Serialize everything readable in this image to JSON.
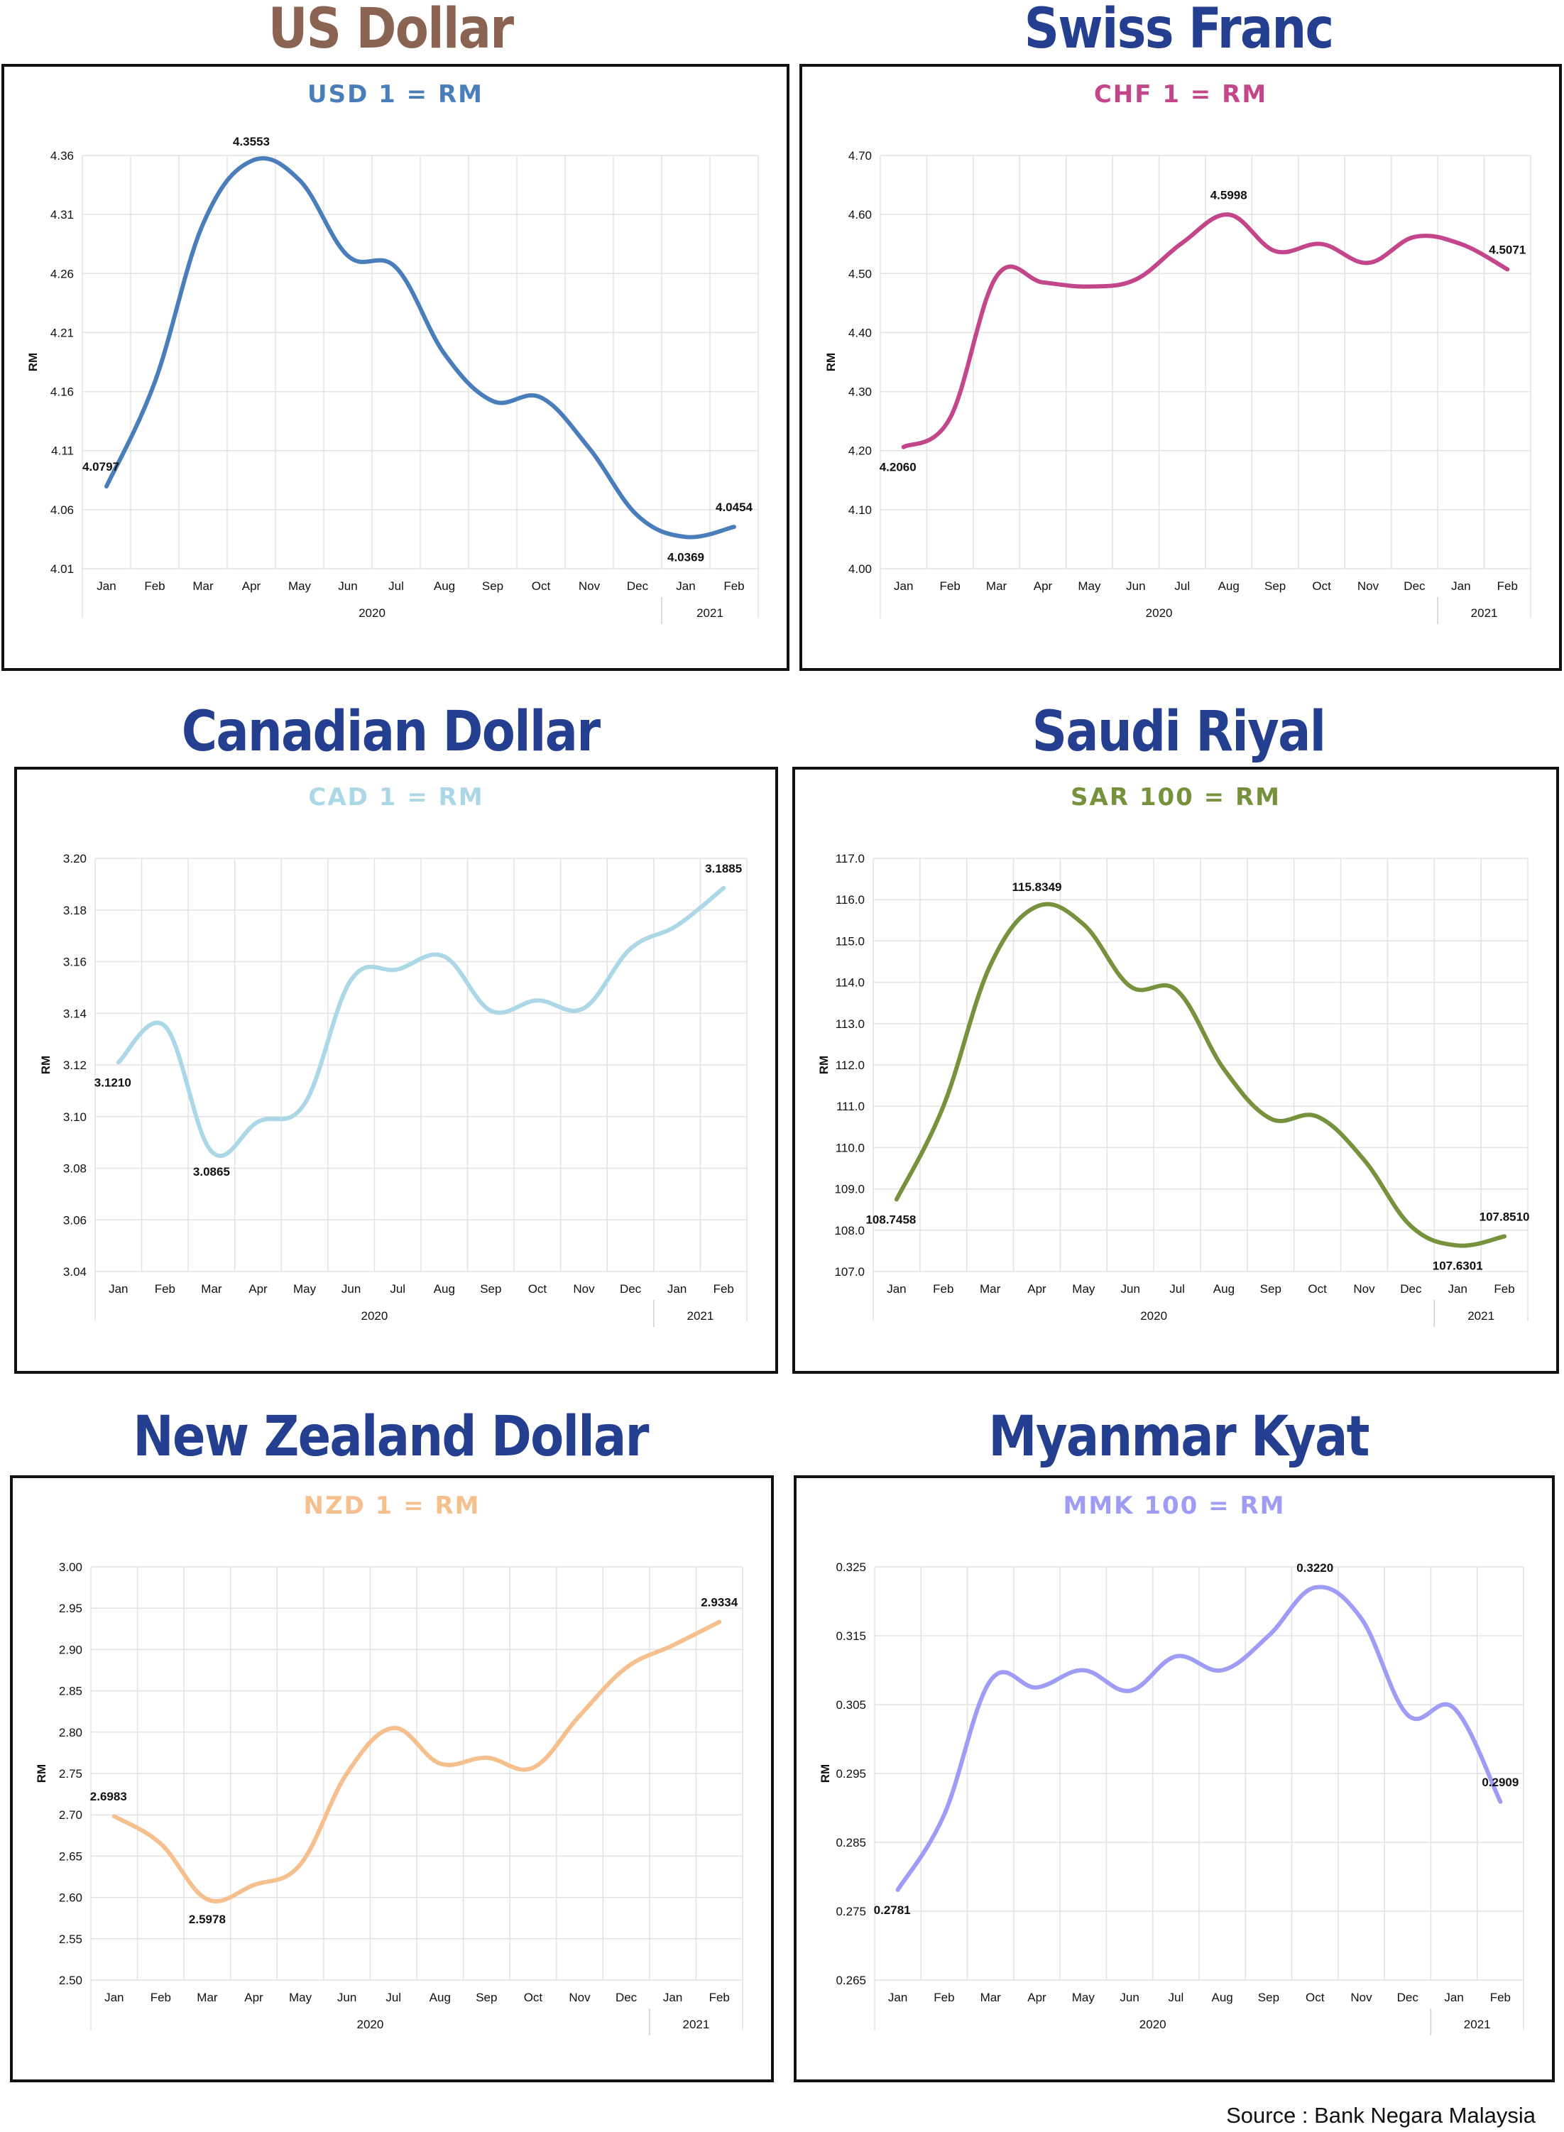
{
  "source": "Source : Bank Negara Malaysia",
  "chart_data": [
    {
      "type": "line",
      "heading": "US Dollar",
      "heading_color": "#8B6352",
      "title": "USD 1 = RM",
      "color": "#4A7EBB",
      "ylabel": "RM",
      "ylim": [
        4.01,
        4.36
      ],
      "yticks": [
        "4.36",
        "4.31",
        "4.26",
        "4.21",
        "4.16",
        "4.11",
        "4.06",
        "4.01"
      ],
      "categories": [
        "Jan",
        "Feb",
        "Mar",
        "Apr",
        "May",
        "Jun",
        "Jul",
        "Aug",
        "Sep",
        "Oct",
        "Nov",
        "Dec",
        "Jan",
        "Feb"
      ],
      "years": [
        {
          "label": "2020",
          "from": 0,
          "to": 11
        },
        {
          "label": "2021",
          "from": 12,
          "to": 13
        }
      ],
      "values": [
        4.0797,
        4.168,
        4.302,
        4.3553,
        4.339,
        4.275,
        4.265,
        4.192,
        4.152,
        4.155,
        4.112,
        4.055,
        4.0369,
        4.0454
      ],
      "labels": [
        {
          "i": 0,
          "text": "4.0797",
          "pos": "above"
        },
        {
          "i": 3,
          "text": "4.3553",
          "pos": "above"
        },
        {
          "i": 12,
          "text": "4.0369",
          "pos": "below"
        },
        {
          "i": 13,
          "text": "4.0454",
          "pos": "above"
        }
      ]
    },
    {
      "type": "line",
      "heading": "Swiss Franc",
      "heading_color": "#243F8F",
      "title": "CHF 1 = RM",
      "color": "#C4468A",
      "ylabel": "RM",
      "ylim": [
        4.0,
        4.7
      ],
      "yticks": [
        "4.70",
        "4.60",
        "4.50",
        "4.40",
        "4.30",
        "4.20",
        "4.10",
        "4.00"
      ],
      "categories": [
        "Jan",
        "Feb",
        "Mar",
        "Apr",
        "May",
        "Jun",
        "Jul",
        "Aug",
        "Sep",
        "Oct",
        "Nov",
        "Dec",
        "Jan",
        "Feb"
      ],
      "years": [
        {
          "label": "2020",
          "from": 0,
          "to": 11
        },
        {
          "label": "2021",
          "from": 12,
          "to": 13
        }
      ],
      "values": [
        4.206,
        4.255,
        4.495,
        4.485,
        4.478,
        4.49,
        4.552,
        4.5998,
        4.538,
        4.55,
        4.518,
        4.562,
        4.55,
        4.5071
      ],
      "labels": [
        {
          "i": 0,
          "text": "4.2060",
          "pos": "below"
        },
        {
          "i": 7,
          "text": "4.5998",
          "pos": "above"
        },
        {
          "i": 13,
          "text": "4.5071",
          "pos": "above"
        }
      ]
    },
    {
      "type": "line",
      "heading": "Canadian Dollar",
      "heading_color": "#243F8F",
      "title": "CAD 1 = RM",
      "color": "#ABD7E6",
      "ylabel": "RM",
      "ylim": [
        3.04,
        3.2
      ],
      "yticks": [
        "3.20",
        "3.18",
        "3.16",
        "3.14",
        "3.12",
        "3.10",
        "3.08",
        "3.06",
        "3.04"
      ],
      "categories": [
        "Jan",
        "Feb",
        "Mar",
        "Apr",
        "May",
        "Jun",
        "Jul",
        "Aug",
        "Sep",
        "Oct",
        "Nov",
        "Dec",
        "Jan",
        "Feb"
      ],
      "years": [
        {
          "label": "2020",
          "from": 0,
          "to": 11
        },
        {
          "label": "2021",
          "from": 12,
          "to": 13
        }
      ],
      "values": [
        3.121,
        3.135,
        3.0865,
        3.098,
        3.105,
        3.153,
        3.157,
        3.162,
        3.141,
        3.145,
        3.142,
        3.165,
        3.174,
        3.1885
      ],
      "labels": [
        {
          "i": 0,
          "text": "3.1210",
          "pos": "below"
        },
        {
          "i": 2,
          "text": "3.0865",
          "pos": "below"
        },
        {
          "i": 13,
          "text": "3.1885",
          "pos": "above"
        }
      ]
    },
    {
      "type": "line",
      "heading": "Saudi Riyal",
      "heading_color": "#243F8F",
      "title": "SAR 100 = RM",
      "color": "#76923C",
      "ylabel": "RM",
      "ylim": [
        107.0,
        117.0
      ],
      "yticks": [
        "117.0",
        "116.0",
        "115.0",
        "114.0",
        "113.0",
        "112.0",
        "111.0",
        "110.0",
        "109.0",
        "108.0",
        "107.0"
      ],
      "categories": [
        "Jan",
        "Feb",
        "Mar",
        "Apr",
        "May",
        "Jun",
        "Jul",
        "Aug",
        "Sep",
        "Oct",
        "Nov",
        "Dec",
        "Jan",
        "Feb"
      ],
      "years": [
        {
          "label": "2020",
          "from": 0,
          "to": 11
        },
        {
          "label": "2021",
          "from": 12,
          "to": 13
        }
      ],
      "values": [
        108.7458,
        111.0,
        114.4,
        115.8349,
        115.4,
        113.9,
        113.8,
        111.9,
        110.7,
        110.75,
        109.7,
        108.1,
        107.6301,
        107.851
      ],
      "labels": [
        {
          "i": 0,
          "text": "108.7458",
          "pos": "below"
        },
        {
          "i": 3,
          "text": "115.8349",
          "pos": "above"
        },
        {
          "i": 12,
          "text": "107.6301",
          "pos": "below"
        },
        {
          "i": 13,
          "text": "107.8510",
          "pos": "above"
        }
      ]
    },
    {
      "type": "line",
      "heading": "New Zealand Dollar",
      "heading_color": "#243F8F",
      "title": "NZD 1 = RM",
      "color": "#F5C08D",
      "ylabel": "RM",
      "ylim": [
        2.5,
        3.0
      ],
      "yticks": [
        "3.00",
        "2.95",
        "2.90",
        "2.85",
        "2.80",
        "2.75",
        "2.70",
        "2.65",
        "2.60",
        "2.55",
        "2.50"
      ],
      "categories": [
        "Jan",
        "Feb",
        "Mar",
        "Apr",
        "May",
        "Jun",
        "Jul",
        "Aug",
        "Sep",
        "Oct",
        "Nov",
        "Dec",
        "Jan",
        "Feb"
      ],
      "years": [
        {
          "label": "2020",
          "from": 0,
          "to": 11
        },
        {
          "label": "2021",
          "from": 12,
          "to": 13
        }
      ],
      "values": [
        2.6983,
        2.665,
        2.5978,
        2.615,
        2.64,
        2.75,
        2.805,
        2.762,
        2.769,
        2.757,
        2.82,
        2.878,
        2.905,
        2.9334
      ],
      "labels": [
        {
          "i": 0,
          "text": "2.6983",
          "pos": "above"
        },
        {
          "i": 2,
          "text": "2.5978",
          "pos": "below"
        },
        {
          "i": 13,
          "text": "2.9334",
          "pos": "above"
        }
      ]
    },
    {
      "type": "line",
      "heading": "Myanmar Kyat",
      "heading_color": "#243F8F",
      "title": "MMK 100 = RM",
      "color": "#9E9CF5",
      "ylabel": "RM",
      "ylim": [
        0.265,
        0.325
      ],
      "yticks": [
        "0.325",
        "0.315",
        "0.305",
        "0.295",
        "0.285",
        "0.275",
        "0.265"
      ],
      "categories": [
        "Jan",
        "Feb",
        "Mar",
        "Apr",
        "May",
        "Jun",
        "Jul",
        "Aug",
        "Sep",
        "Oct",
        "Nov",
        "Dec",
        "Jan",
        "Feb"
      ],
      "years": [
        {
          "label": "2020",
          "from": 0,
          "to": 11
        },
        {
          "label": "2021",
          "from": 12,
          "to": 13
        }
      ],
      "values": [
        0.2781,
        0.289,
        0.3085,
        0.3075,
        0.31,
        0.307,
        0.312,
        0.31,
        0.315,
        0.322,
        0.3175,
        0.3035,
        0.3045,
        0.2909
      ],
      "labels": [
        {
          "i": 0,
          "text": "0.2781",
          "pos": "below"
        },
        {
          "i": 9,
          "text": "0.3220",
          "pos": "above"
        },
        {
          "i": 13,
          "text": "0.2909",
          "pos": "above"
        }
      ]
    }
  ]
}
